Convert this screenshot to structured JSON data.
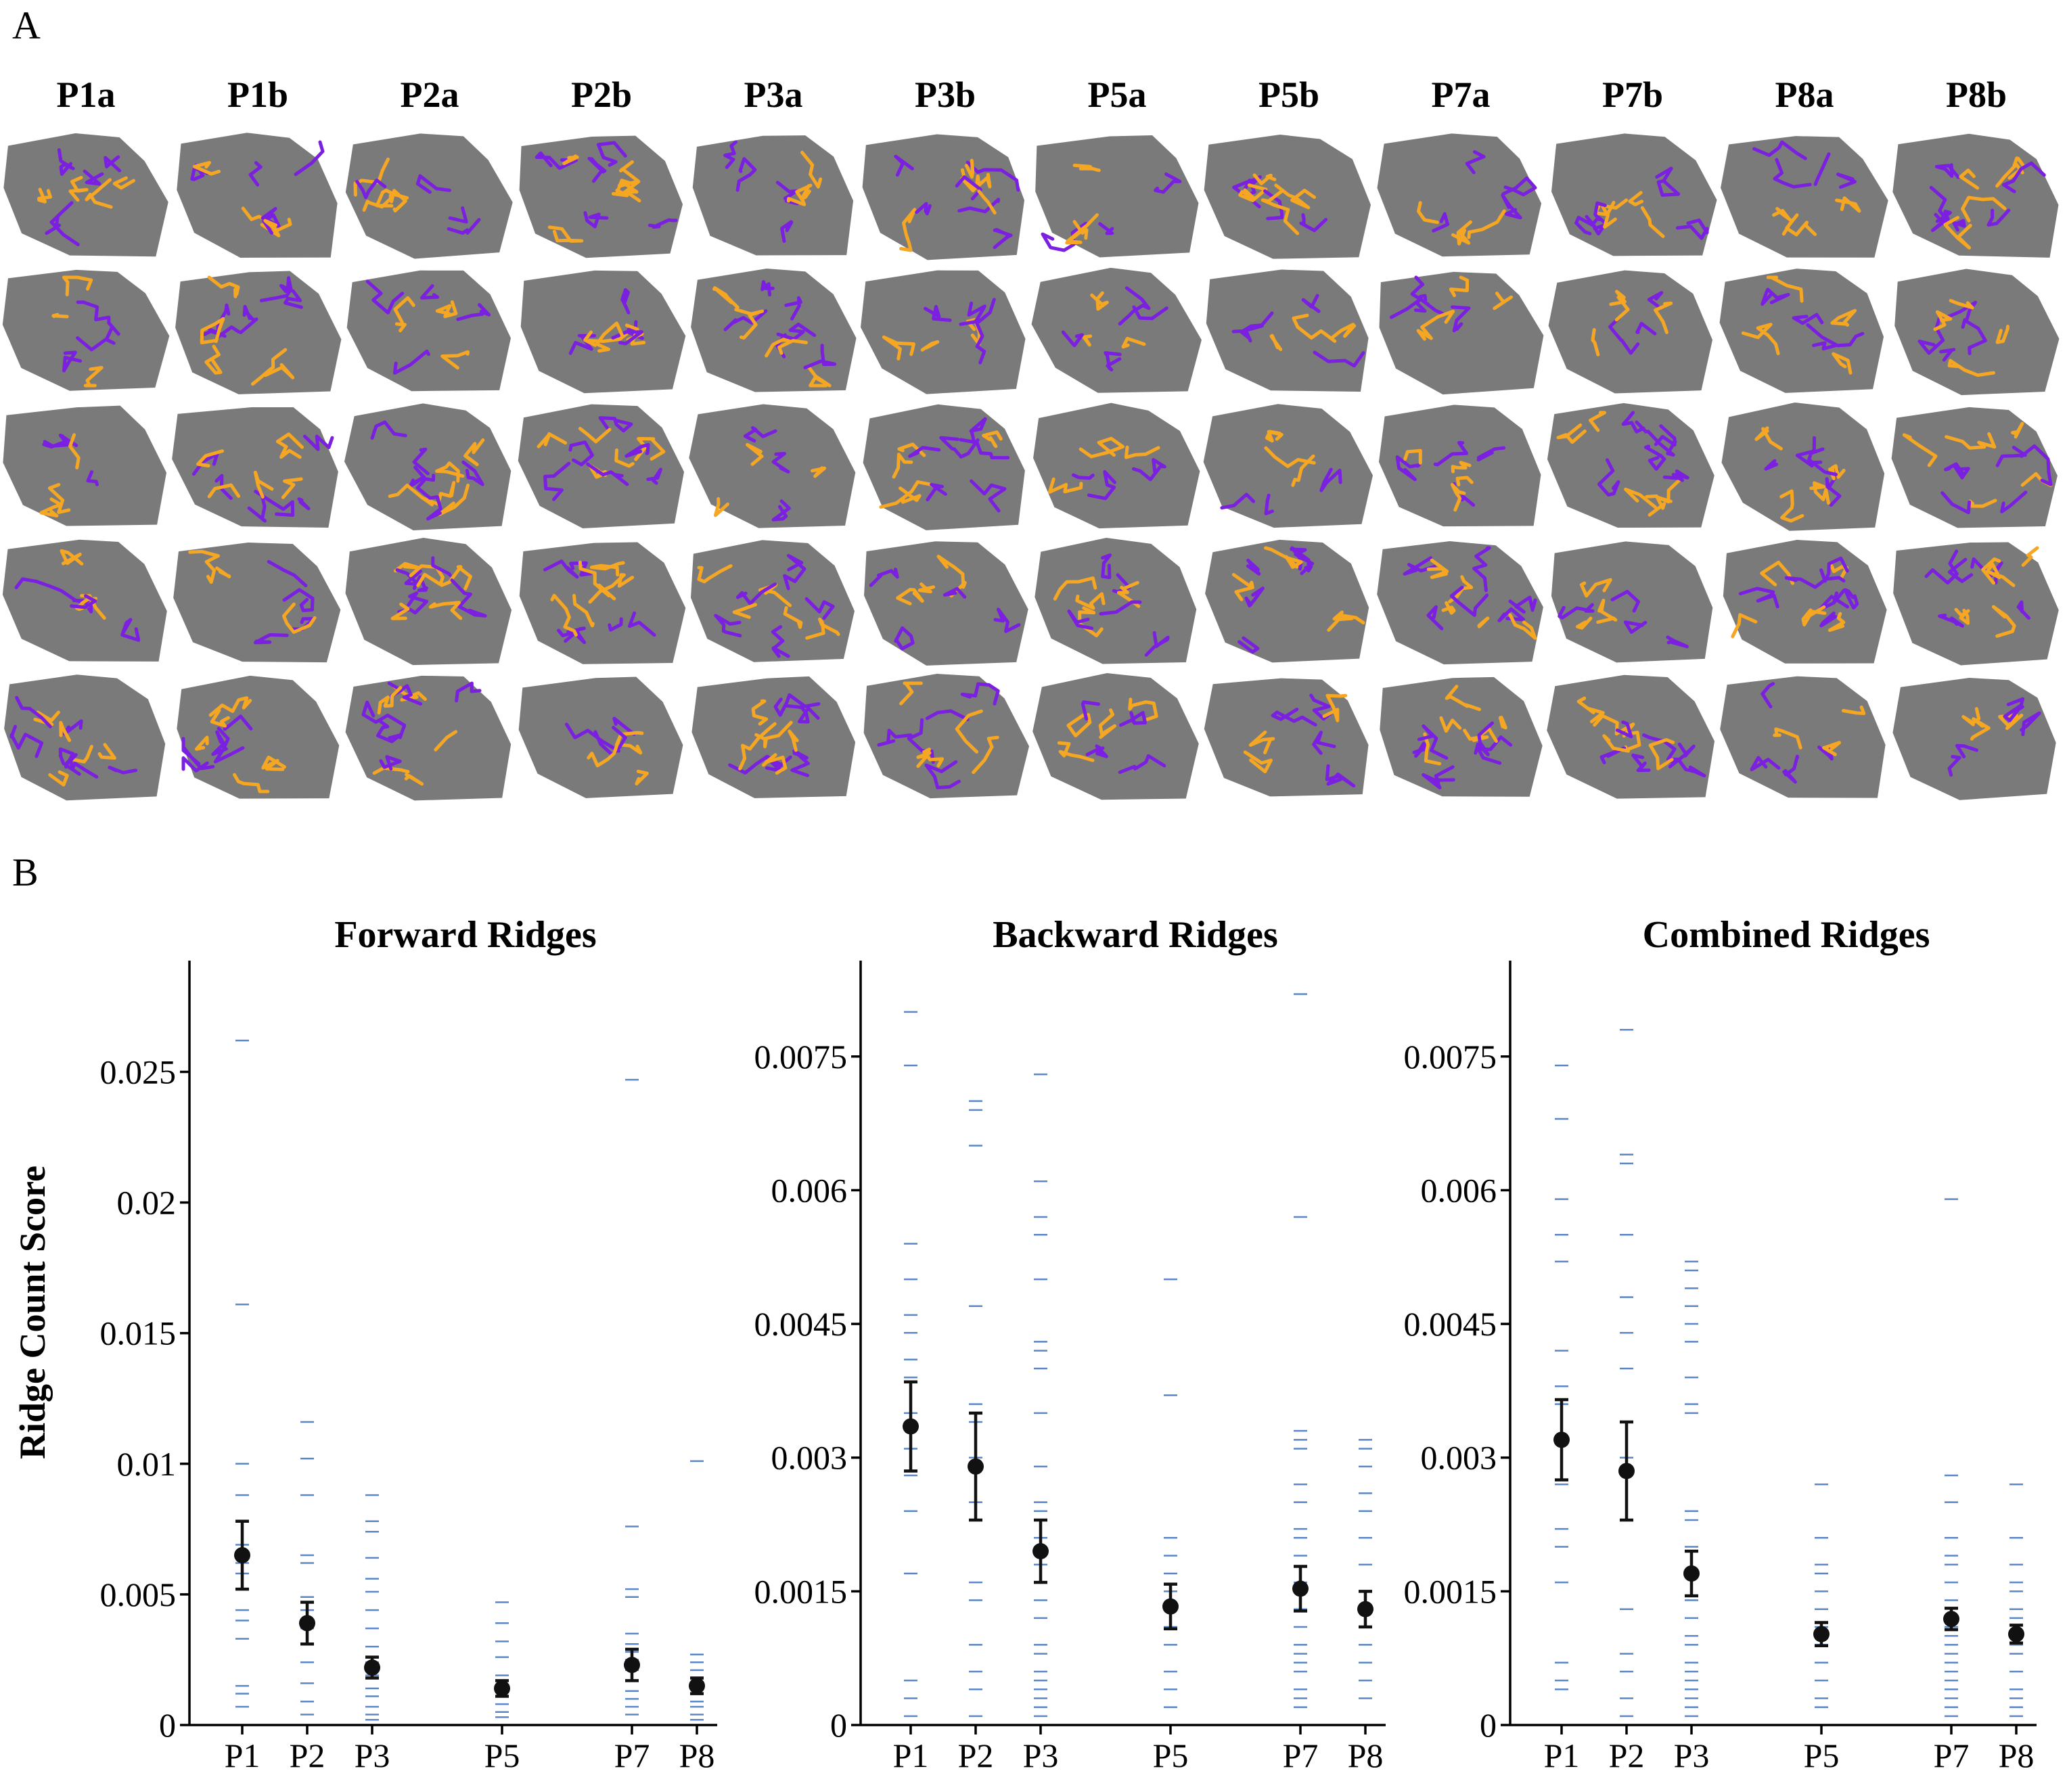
{
  "figure": {
    "panel_a_label": "A",
    "panel_b_label": "B",
    "column_labels": [
      "P1a",
      "P1b",
      "P2a",
      "P2b",
      "P3a",
      "P3b",
      "P5a",
      "P5b",
      "P7a",
      "P7b",
      "P8a",
      "P8b"
    ],
    "row_count": 5,
    "colors": {
      "forward": "#f5a623",
      "backward": "#7b1fe0",
      "tissue": "#7a7a7a",
      "raw_points": "#5b86c8",
      "mean": "#111111"
    }
  },
  "charts": {
    "y_axis_label": "Ridge Count Score",
    "categories": [
      "P1",
      "P2",
      "P3",
      "P5",
      "P7",
      "P8"
    ]
  },
  "chart_data": [
    {
      "type": "scatter",
      "title": "Forward Ridges",
      "ylabel": "Ridge Count Score",
      "ylim": [
        0,
        0.029
      ],
      "yticks": [
        0,
        0.005,
        0.01,
        0.015,
        0.02,
        0.025
      ],
      "ytick_labels": [
        "0",
        "0.005",
        "0.01",
        "0.015",
        "0.02",
        "0.025"
      ],
      "categories": [
        "P1",
        "P2",
        "P3",
        "P5",
        "P7",
        "P8"
      ],
      "x_positions": [
        1,
        2,
        3,
        5,
        7,
        8
      ],
      "means": [
        0.0065,
        0.0039,
        0.0022,
        0.0014,
        0.0023,
        0.0015
      ],
      "sem": [
        0.0013,
        0.0008,
        0.0004,
        0.0003,
        0.0006,
        0.0003
      ],
      "points": [
        [
          0.0262,
          0.0161,
          0.01,
          0.0088,
          0.0078,
          0.0069,
          0.0062,
          0.0058,
          0.0044,
          0.004,
          0.0033,
          0.0015,
          0.0012,
          0.0007
        ],
        [
          0.0116,
          0.0102,
          0.0088,
          0.0065,
          0.0062,
          0.0049,
          0.0044,
          0.0037,
          0.0031,
          0.0024,
          0.0016,
          0.0009,
          0.0004
        ],
        [
          0.0088,
          0.0078,
          0.0074,
          0.0064,
          0.0056,
          0.0051,
          0.0044,
          0.0037,
          0.003,
          0.0024,
          0.0019,
          0.0014,
          0.0011,
          0.0007,
          0.0004,
          0.0002
        ],
        [
          0.0047,
          0.0039,
          0.0032,
          0.0026,
          0.0019,
          0.0015,
          0.0011,
          0.0008,
          0.0005,
          0.0003
        ],
        [
          0.0247,
          0.0076,
          0.0052,
          0.0049,
          0.0035,
          0.0031,
          0.0028,
          0.0025,
          0.0021,
          0.0017,
          0.0013,
          0.001,
          0.0007,
          0.0004
        ],
        [
          0.0101,
          0.0027,
          0.0024,
          0.0021,
          0.0018,
          0.0015,
          0.0012,
          0.0009,
          0.0007,
          0.0004,
          0.0002
        ]
      ]
    },
    {
      "type": "scatter",
      "title": "Backward Ridges",
      "ylabel": "",
      "ylim": [
        0,
        0.0085
      ],
      "yticks": [
        0,
        0.0015,
        0.003,
        0.0045,
        0.006,
        0.0075
      ],
      "ytick_labels": [
        "0",
        "0.0015",
        "0.003",
        "0.0045",
        "0.006",
        "0.0075"
      ],
      "categories": [
        "P1",
        "P2",
        "P3",
        "P5",
        "P7",
        "P8"
      ],
      "x_positions": [
        1,
        2,
        3,
        5,
        7,
        8
      ],
      "means": [
        0.00335,
        0.0029,
        0.00195,
        0.00133,
        0.00153,
        0.0013
      ],
      "sem": [
        0.0005,
        0.0006,
        0.00035,
        0.00025,
        0.00025,
        0.0002
      ],
      "points": [
        [
          0.008,
          0.0074,
          0.0054,
          0.005,
          0.0046,
          0.0044,
          0.0041,
          0.0039,
          0.0035,
          0.0031,
          0.0028,
          0.0024,
          0.0017,
          0.0005,
          0.0003,
          0.0001
        ],
        [
          0.007,
          0.0069,
          0.0065,
          0.0047,
          0.0036,
          0.0035,
          0.0034,
          0.003,
          0.0025,
          0.0016,
          0.0014,
          0.0009,
          0.0006,
          0.0004,
          0.0001
        ],
        [
          0.0073,
          0.0061,
          0.0057,
          0.0055,
          0.005,
          0.0043,
          0.0042,
          0.004,
          0.0035,
          0.0029,
          0.0025,
          0.0024,
          0.0021,
          0.0018,
          0.0014,
          0.0012,
          0.0009,
          0.0008,
          0.0006,
          0.0005,
          0.0004,
          0.0003,
          0.0002,
          0.0001
        ],
        [
          0.005,
          0.0037,
          0.0021,
          0.0019,
          0.0017,
          0.0015,
          0.0013,
          0.0011,
          0.0009,
          0.0006,
          0.0004,
          0.0002
        ],
        [
          0.0082,
          0.0057,
          0.0033,
          0.0032,
          0.0031,
          0.0027,
          0.0025,
          0.0022,
          0.0021,
          0.0019,
          0.0016,
          0.0015,
          0.0013,
          0.0011,
          0.0009,
          0.0008,
          0.0007,
          0.0006,
          0.0004,
          0.0003,
          0.0002
        ],
        [
          0.0032,
          0.0031,
          0.0029,
          0.0026,
          0.0024,
          0.0021,
          0.0018,
          0.0015,
          0.0013,
          0.0011,
          0.0009,
          0.0007,
          0.0005,
          0.0003
        ]
      ]
    },
    {
      "type": "scatter",
      "title": "Combined Ridges",
      "ylabel": "",
      "ylim": [
        0,
        0.0085
      ],
      "yticks": [
        0,
        0.0015,
        0.003,
        0.0045,
        0.006,
        0.0075
      ],
      "ytick_labels": [
        "0",
        "0.0015",
        "0.003",
        "0.0045",
        "0.006",
        "0.0075"
      ],
      "categories": [
        "P1",
        "P2",
        "P3",
        "P5",
        "P7",
        "P8"
      ],
      "x_positions": [
        1,
        2,
        3,
        5,
        7,
        8
      ],
      "means": [
        0.0032,
        0.00285,
        0.0017,
        0.00102,
        0.00119,
        0.00102
      ],
      "sem": [
        0.00045,
        0.00055,
        0.00025,
        0.00013,
        0.00012,
        0.0001
      ],
      "points": [
        [
          0.0074,
          0.0068,
          0.0059,
          0.0055,
          0.0052,
          0.0042,
          0.0038,
          0.0036,
          0.0032,
          0.0027,
          0.0022,
          0.002,
          0.0016,
          0.0007,
          0.0005,
          0.0004
        ],
        [
          0.0078,
          0.0064,
          0.0063,
          0.0055,
          0.0048,
          0.0044,
          0.004,
          0.0034,
          0.003,
          0.0023,
          0.0013,
          0.0008,
          0.0006,
          0.0003,
          0.0001
        ],
        [
          0.0052,
          0.0051,
          0.0049,
          0.0047,
          0.0045,
          0.0043,
          0.0039,
          0.0036,
          0.0035,
          0.0024,
          0.0023,
          0.002,
          0.0017,
          0.0014,
          0.0012,
          0.001,
          0.0009,
          0.0007,
          0.0006,
          0.0005,
          0.0004,
          0.0003,
          0.0002,
          0.0001
        ],
        [
          0.0027,
          0.0021,
          0.0018,
          0.0017,
          0.0015,
          0.0013,
          0.0011,
          0.0009,
          0.0007,
          0.0005,
          0.0003,
          0.0002
        ],
        [
          0.0059,
          0.0028,
          0.0025,
          0.0021,
          0.0019,
          0.0018,
          0.0016,
          0.0014,
          0.0012,
          0.0011,
          0.001,
          0.0009,
          0.0008,
          0.0007,
          0.0006,
          0.0005,
          0.0004,
          0.0003,
          0.0002,
          0.0001
        ],
        [
          0.0027,
          0.0021,
          0.0018,
          0.0016,
          0.0015,
          0.0013,
          0.0012,
          0.001,
          0.0009,
          0.0008,
          0.0006,
          0.0004,
          0.0003,
          0.0002,
          0.0001
        ]
      ]
    }
  ]
}
